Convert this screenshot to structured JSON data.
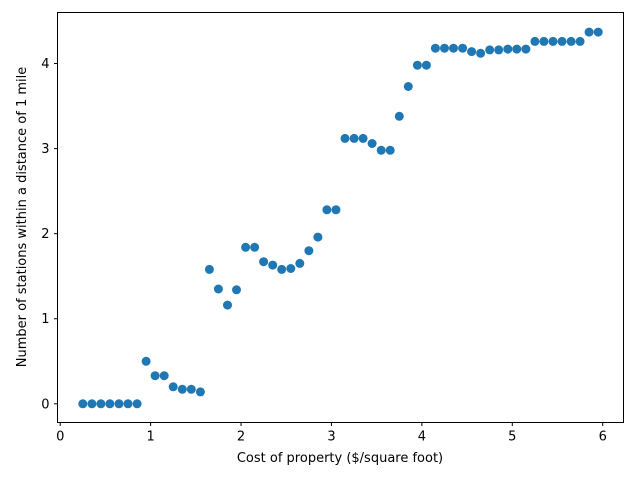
{
  "chart_data": {
    "type": "scatter",
    "xlabel": "Cost of property ($/square foot)",
    "ylabel": "Number of stations within a distance of 1 mile",
    "xlim": [
      -0.03,
      6.23
    ],
    "ylim": [
      -0.22,
      4.6
    ],
    "xticks": [
      0,
      1,
      2,
      3,
      4,
      5,
      6
    ],
    "yticks": [
      0,
      1,
      2,
      3,
      4
    ],
    "marker_color": "#1f77b4",
    "grid": false,
    "series": [
      {
        "x": [
          0.25,
          0.35,
          0.45,
          0.55,
          0.65,
          0.75,
          0.85,
          0.95,
          1.05,
          1.15,
          1.25,
          1.35,
          1.45,
          1.55,
          1.65,
          1.75,
          1.85,
          1.95,
          2.05,
          2.15,
          2.25,
          2.35,
          2.45,
          2.55,
          2.65,
          2.75,
          2.85,
          2.95,
          3.05,
          3.15,
          3.25,
          3.35,
          3.45,
          3.55,
          3.65,
          3.75,
          3.85,
          3.95,
          4.05,
          4.15,
          4.25,
          4.35,
          4.45,
          4.55,
          4.65,
          4.75,
          4.85,
          4.95,
          5.05,
          5.15,
          5.25,
          5.35,
          5.45,
          5.55,
          5.65,
          5.75,
          5.85,
          5.95
        ],
        "y": [
          0.0,
          0.0,
          0.0,
          0.0,
          0.0,
          0.0,
          0.0,
          0.5,
          0.33,
          0.33,
          0.2,
          0.17,
          0.17,
          0.14,
          1.58,
          1.35,
          1.16,
          1.34,
          1.84,
          1.84,
          1.67,
          1.63,
          1.58,
          1.59,
          1.65,
          1.8,
          1.96,
          2.28,
          2.28,
          3.12,
          3.12,
          3.12,
          3.06,
          2.98,
          2.98,
          3.38,
          3.73,
          3.98,
          3.98,
          4.18,
          4.18,
          4.18,
          4.18,
          4.14,
          4.12,
          4.16,
          4.16,
          4.17,
          4.17,
          4.17,
          4.26,
          4.26,
          4.26,
          4.26,
          4.26,
          4.26,
          4.37,
          4.37
        ]
      }
    ]
  }
}
